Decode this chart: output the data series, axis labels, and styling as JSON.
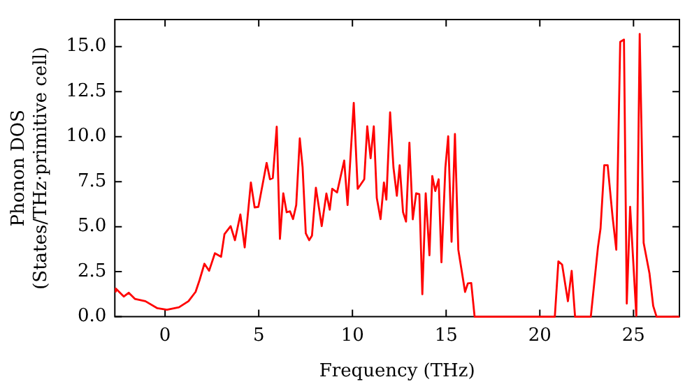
{
  "chart_data": {
    "type": "line",
    "xlabel": "Frequency (THz)",
    "ylabel": "Phonon DOS\n(States/THz·primitive cell)",
    "x": [
      -2.68,
      -2.63,
      -2.2,
      -1.94,
      -1.61,
      -1.05,
      -0.41,
      0.1,
      0.74,
      1.25,
      1.63,
      1.84,
      2.1,
      2.35,
      2.66,
      2.99,
      3.17,
      3.5,
      3.73,
      4.02,
      4.25,
      4.58,
      4.78,
      4.98,
      5.21,
      5.42,
      5.6,
      5.75,
      5.96,
      6.13,
      6.31,
      6.49,
      6.67,
      6.83,
      7.0,
      7.19,
      7.34,
      7.51,
      7.69,
      7.84,
      8.05,
      8.36,
      8.61,
      8.79,
      8.92,
      9.18,
      9.56,
      9.74,
      10.07,
      10.28,
      10.63,
      10.79,
      10.97,
      11.14,
      11.3,
      11.5,
      11.68,
      11.81,
      12.01,
      12.19,
      12.37,
      12.52,
      12.7,
      12.86,
      13.04,
      13.22,
      13.4,
      13.57,
      13.73,
      13.91,
      14.11,
      14.26,
      14.42,
      14.6,
      14.75,
      14.96,
      15.11,
      15.29,
      15.47,
      15.65,
      15.83,
      16.01,
      16.16,
      16.34,
      16.52,
      20.8,
      20.99,
      21.19,
      21.5,
      21.7,
      21.88,
      22.72,
      23.1,
      23.24,
      23.44,
      23.62,
      23.88,
      24.08,
      24.29,
      24.49,
      24.64,
      24.82,
      25.15,
      25.33,
      25.54,
      25.85,
      26.05,
      26.23,
      27.45
    ],
    "series": [
      {
        "color": "#ff0000",
        "values": [
          1.4,
          1.56,
          1.12,
          1.33,
          0.99,
          0.86,
          0.47,
          0.39,
          0.52,
          0.86,
          1.38,
          2.03,
          2.94,
          2.55,
          3.52,
          3.33,
          4.58,
          5.03,
          4.25,
          5.68,
          3.85,
          7.45,
          6.07,
          6.1,
          7.37,
          8.54,
          7.63,
          7.7,
          10.55,
          4.32,
          6.85,
          5.8,
          5.85,
          5.42,
          6.2,
          9.9,
          8.3,
          4.63,
          4.25,
          4.5,
          7.16,
          5.03,
          6.84,
          5.94,
          7.1,
          6.9,
          8.67,
          6.2,
          11.87,
          7.1,
          7.63,
          10.57,
          8.8,
          10.57,
          6.59,
          5.42,
          7.45,
          6.5,
          11.35,
          8.28,
          6.72,
          8.41,
          5.81,
          5.28,
          9.66,
          5.41,
          6.85,
          6.8,
          1.25,
          6.85,
          3.41,
          7.81,
          6.98,
          7.63,
          3.02,
          8.28,
          10.02,
          4.16,
          10.15,
          3.72,
          2.55,
          1.38,
          1.85,
          1.87,
          0,
          0,
          3.07,
          2.89,
          0.86,
          2.55,
          0,
          0,
          3.85,
          4.9,
          8.41,
          8.41,
          5.57,
          3.72,
          15.26,
          15.39,
          0.73,
          6.1,
          0.05,
          15.7,
          4.1,
          2.42,
          0.6,
          0,
          0
        ]
      }
    ],
    "xlim": [
      -2.68,
      27.45
    ],
    "ylim": [
      0,
      16.5
    ],
    "xticks": [
      0,
      5,
      10,
      15,
      20,
      25
    ],
    "yticks": [
      {
        "value": 0,
        "label": "0.0"
      },
      {
        "value": 2.5,
        "label": "2.5"
      },
      {
        "value": 5,
        "label": "5.0"
      },
      {
        "value": 7.5,
        "label": "7.5"
      },
      {
        "value": 10,
        "label": "10.0"
      },
      {
        "value": 12.5,
        "label": "12.5"
      },
      {
        "value": 15,
        "label": "15.0"
      }
    ],
    "marker": "none",
    "line_style": "solid"
  }
}
